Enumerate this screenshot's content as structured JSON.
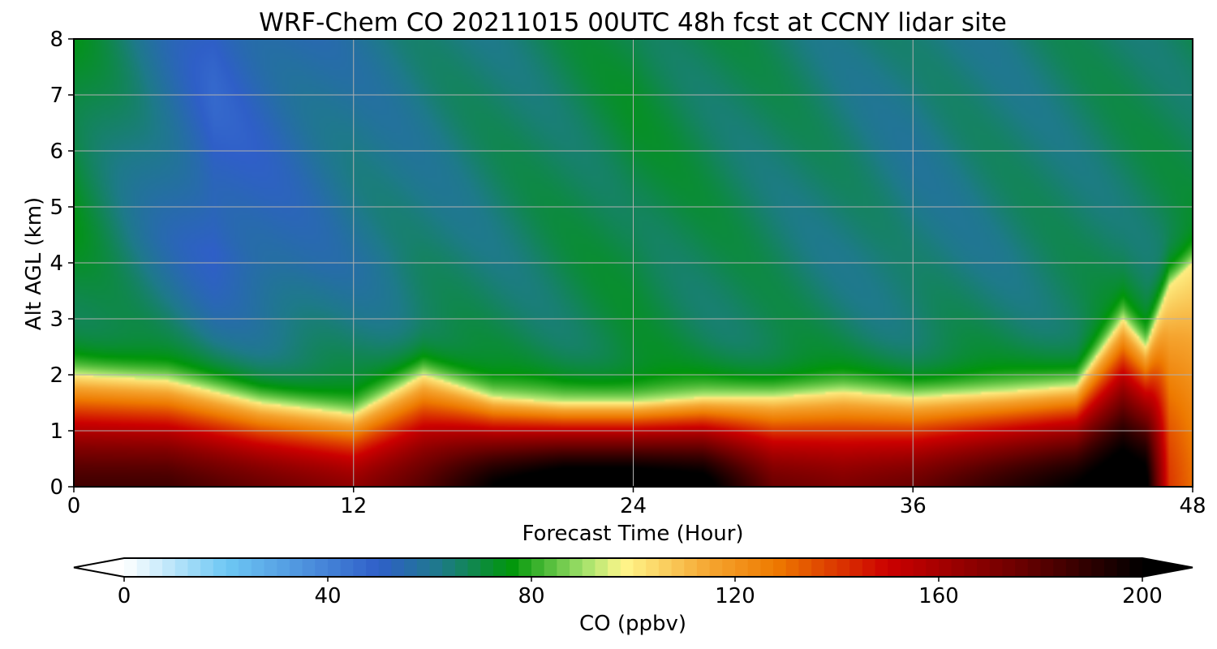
{
  "chart_data": [
    {
      "type": "heatmap",
      "title": "WRF-Chem CO  20211015 00UTC 48h fcst at CCNY lidar site",
      "xlabel": "Forecast Time (Hour)",
      "ylabel": "Alt AGL (km)",
      "xlim": [
        0,
        48
      ],
      "ylim": [
        0,
        8
      ],
      "xticks": [
        "0",
        "12",
        "24",
        "36",
        "48"
      ],
      "yticks": [
        "0",
        "1",
        "2",
        "3",
        "4",
        "5",
        "6",
        "7",
        "8"
      ],
      "grid": true,
      "z_units": "ppbv",
      "z_range": [
        0,
        200
      ],
      "features": [
        {
          "x": 0,
          "surface_peak": 185,
          "layer_top_km": 2.0
        },
        {
          "x": 4,
          "surface_peak": 185,
          "layer_top_km": 1.9
        },
        {
          "x": 8,
          "surface_peak": 175,
          "layer_top_km": 1.5
        },
        {
          "x": 12,
          "surface_peak": 165,
          "layer_top_km": 1.3
        },
        {
          "x": 15,
          "surface_peak": 180,
          "layer_top_km": 2.0
        },
        {
          "x": 18,
          "surface_peak": 200,
          "layer_top_km": 1.6
        },
        {
          "x": 21,
          "surface_peak": 210,
          "layer_top_km": 1.5
        },
        {
          "x": 24,
          "surface_peak": 210,
          "layer_top_km": 1.5
        },
        {
          "x": 27,
          "surface_peak": 205,
          "layer_top_km": 1.6
        },
        {
          "x": 30,
          "surface_peak": 175,
          "layer_top_km": 1.6
        },
        {
          "x": 33,
          "surface_peak": 170,
          "layer_top_km": 1.7
        },
        {
          "x": 36,
          "surface_peak": 175,
          "layer_top_km": 1.6
        },
        {
          "x": 40,
          "surface_peak": 190,
          "layer_top_km": 1.7
        },
        {
          "x": 43,
          "surface_peak": 200,
          "layer_top_km": 1.8
        },
        {
          "x": 45,
          "surface_peak": 210,
          "layer_top_km": 3.0
        },
        {
          "x": 46,
          "surface_peak": 205,
          "layer_top_km": 2.5
        },
        {
          "x": 47,
          "surface_peak": 140,
          "layer_top_km": 3.6
        },
        {
          "x": 48,
          "surface_peak": 130,
          "layer_top_km": 4.0
        }
      ],
      "background_aloft": [
        {
          "x": 0,
          "z_km": 4,
          "value": 72
        },
        {
          "x": 6,
          "z_km": 5.5,
          "value": 50
        },
        {
          "x": 12,
          "z_km": 5,
          "value": 60
        },
        {
          "x": 24,
          "z_km": 6,
          "value": 70
        },
        {
          "x": 36,
          "z_km": 5,
          "value": 62
        },
        {
          "x": 48,
          "z_km": 6,
          "value": 68
        }
      ]
    }
  ],
  "colorbar": {
    "label": "CO  (ppbv)",
    "ticks": [
      "0",
      "40",
      "80",
      "120",
      "160",
      "200"
    ],
    "min": 0,
    "max": 200,
    "extend": "both",
    "stops": [
      {
        "v": 0,
        "c": "#ffffff"
      },
      {
        "v": 20,
        "c": "#6ec8f4"
      },
      {
        "v": 50,
        "c": "#2f5fc8"
      },
      {
        "v": 62,
        "c": "#1e7a8a"
      },
      {
        "v": 76,
        "c": "#00960a"
      },
      {
        "v": 90,
        "c": "#9ee068"
      },
      {
        "v": 98,
        "c": "#fff78c"
      },
      {
        "v": 115,
        "c": "#f5a530"
      },
      {
        "v": 128,
        "c": "#ee7a00"
      },
      {
        "v": 150,
        "c": "#cc0000"
      },
      {
        "v": 175,
        "c": "#6e0000"
      },
      {
        "v": 200,
        "c": "#000000"
      }
    ]
  }
}
